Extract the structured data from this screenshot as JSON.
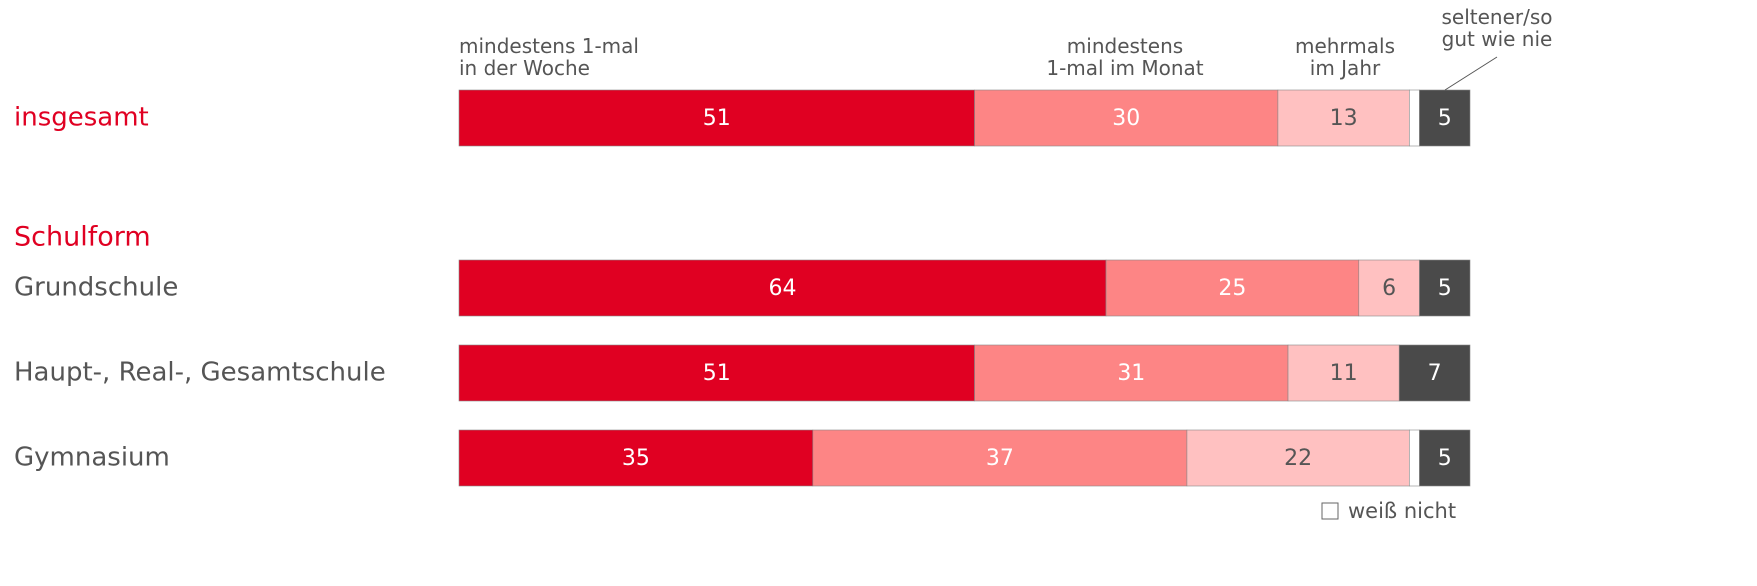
{
  "chart_data": {
    "type": "stacked-bar",
    "section_label": "Schulform",
    "categories": [
      "insgesamt",
      "Grundschule",
      "Haupt-, Real-, Gesamtschule",
      "Gymnasium"
    ],
    "series": [
      {
        "name": "mindestens 1-mal\nin der Woche",
        "color": "#e00022",
        "label_color": "#ffffff",
        "values": [
          51,
          64,
          51,
          35
        ]
      },
      {
        "name": "mindestens\n1-mal im Monat",
        "color": "#fd8585",
        "label_color": "#ffffff",
        "values": [
          30,
          25,
          31,
          37
        ]
      },
      {
        "name": "mehrmals\nim Jahr",
        "color": "#ffc1c1",
        "label_color": "#555555",
        "values": [
          13,
          6,
          11,
          22
        ]
      },
      {
        "name": "weiß nicht",
        "color": "#ffffff",
        "values": [
          1,
          0,
          0,
          1
        ]
      },
      {
        "name": "seltener/so\ngut wie nie",
        "color": "#4a4a4a",
        "label_color": "#ffffff",
        "values": [
          5,
          5,
          7,
          5
        ]
      }
    ]
  }
}
